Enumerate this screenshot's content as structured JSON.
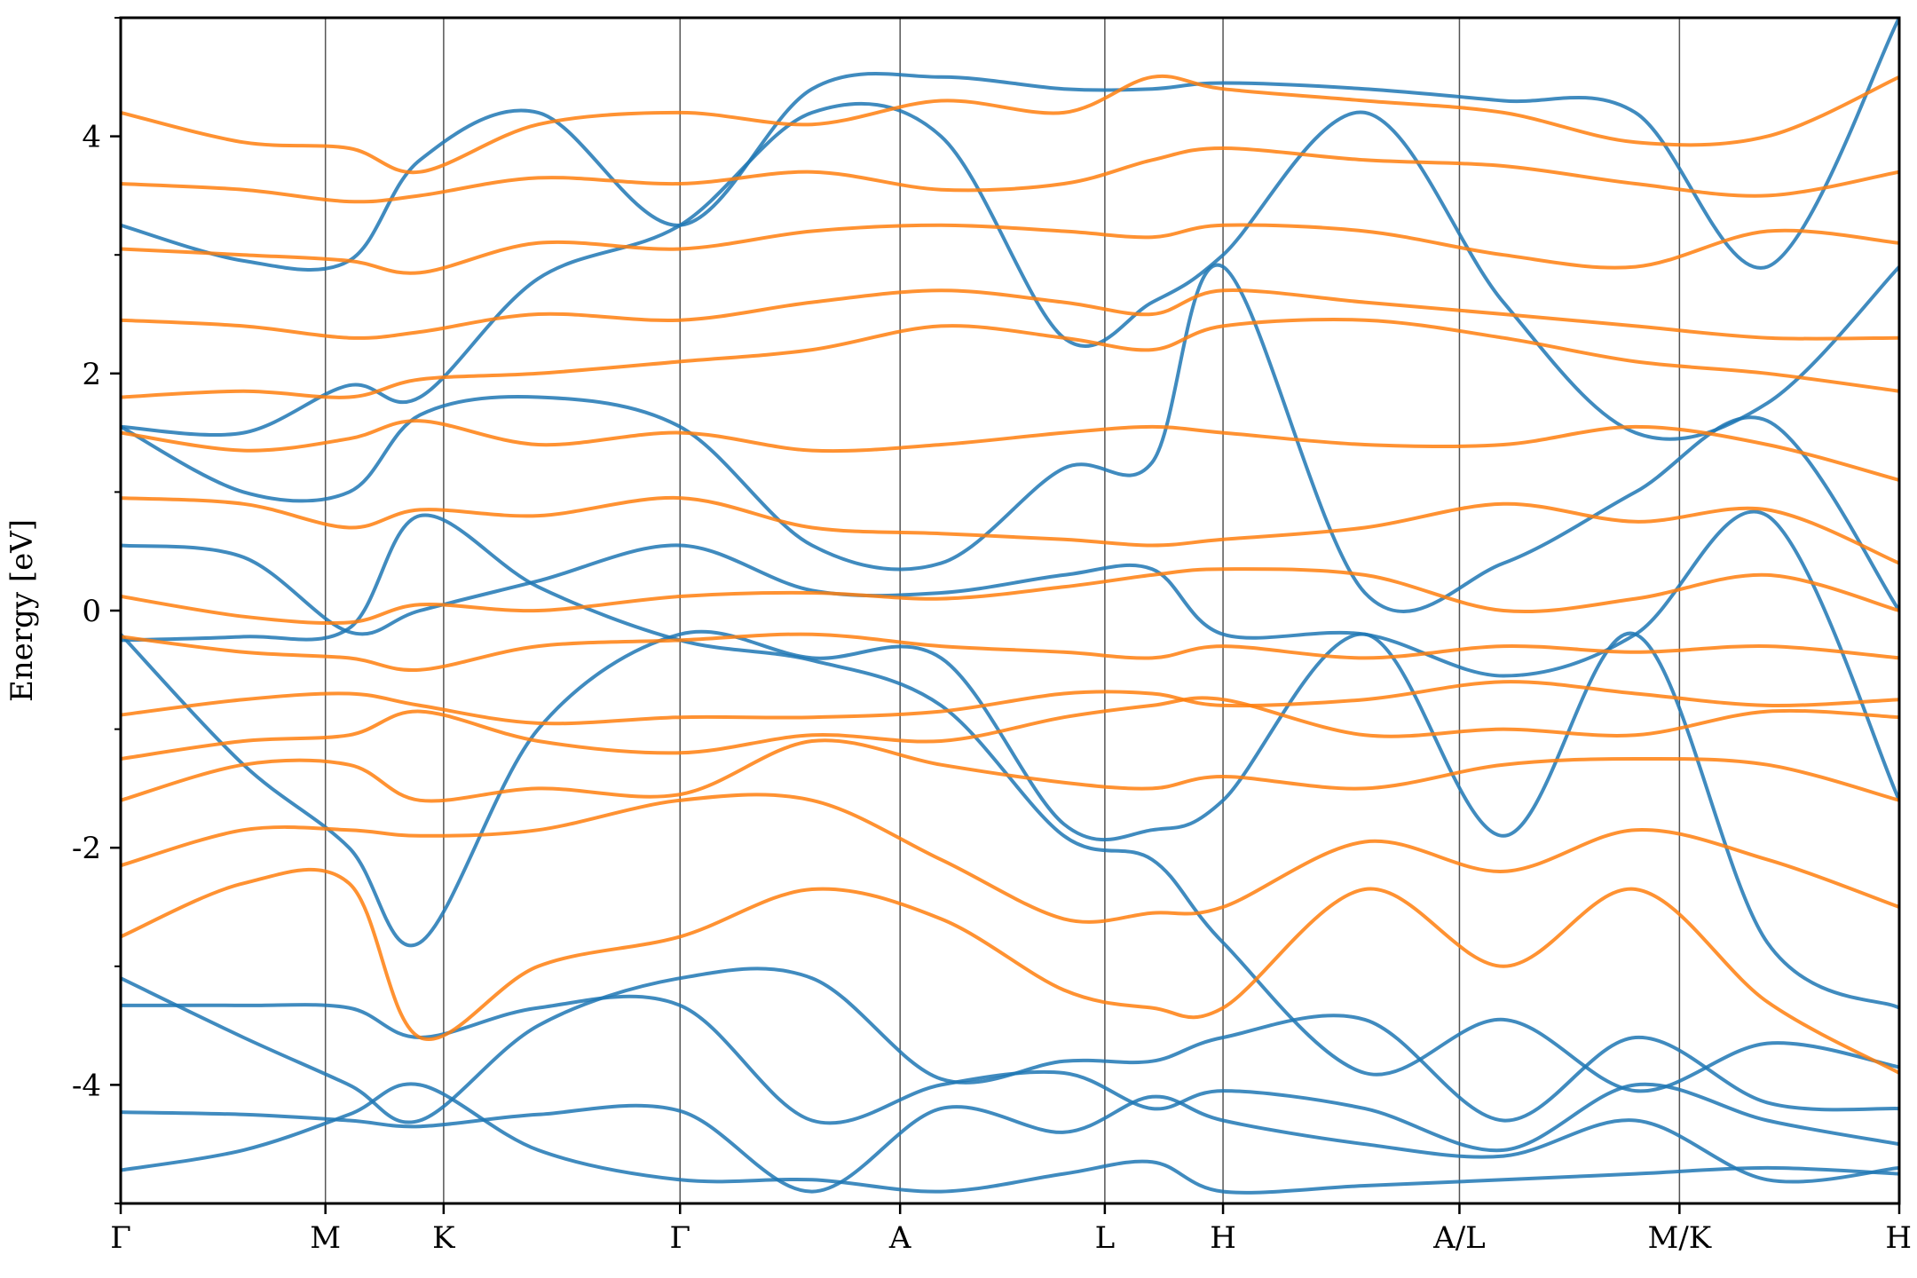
{
  "chart_data": {
    "type": "line",
    "ylabel": "Energy [eV]",
    "ylim": [
      -5,
      5
    ],
    "yticks": [
      -4,
      -2,
      0,
      2,
      4
    ],
    "ytick_labels": [
      "-4",
      "-2",
      "0",
      "2",
      "4"
    ],
    "yminor": [
      -5,
      -3,
      -1,
      1,
      3,
      5
    ],
    "kpath": [
      "Γ",
      "M",
      "K",
      "Γ",
      "A",
      "L",
      "H",
      "A/L",
      "M/K",
      "H"
    ],
    "kpositions": [
      0,
      0.8854,
      1.3966,
      2.419,
      3.3706,
      4.256,
      4.7672,
      5.7896,
      6.7411,
      7.6916
    ],
    "xlim": [
      0,
      7.6916
    ],
    "colors": {
      "spin_down": "#1f77b4",
      "spin_up": "#ff7f0e",
      "vline": "#555555"
    },
    "series": [
      {
        "color_key": "spin_down",
        "bands": [
          [
            -4.72,
            -4.55,
            -4.25,
            -4.0,
            -4.55,
            -4.8,
            -4.8,
            -4.9,
            -4.75,
            -4.65,
            -4.9,
            -4.85,
            -4.8,
            -4.75,
            -4.7,
            -4.75
          ],
          [
            -4.23,
            -4.25,
            -4.3,
            -4.35,
            -4.25,
            -4.22,
            -4.9,
            -4.2,
            -4.4,
            -4.1,
            -4.3,
            -4.5,
            -4.6,
            -4.3,
            -4.8,
            -4.7
          ],
          [
            -3.33,
            -3.33,
            -3.35,
            -3.6,
            -3.35,
            -3.33,
            -4.3,
            -4.0,
            -3.9,
            -4.2,
            -4.05,
            -4.2,
            -4.55,
            -4.0,
            -4.3,
            -4.5
          ],
          [
            -3.1,
            -3.6,
            -4.0,
            -4.3,
            -3.5,
            -3.1,
            -3.1,
            -3.95,
            -3.8,
            -3.8,
            -3.6,
            -3.45,
            -4.3,
            -3.6,
            -4.15,
            -4.2
          ],
          [
            -0.25,
            -0.22,
            -0.15,
            0.8,
            0.2,
            -0.25,
            -0.42,
            -0.8,
            -1.9,
            -2.1,
            -2.8,
            -3.9,
            -3.45,
            -4.05,
            -3.65,
            -3.85
          ],
          [
            -0.2,
            -1.3,
            -2.0,
            -2.8,
            -1.0,
            -0.2,
            -0.4,
            -0.4,
            -1.8,
            -1.85,
            -1.6,
            -0.2,
            -1.9,
            -0.2,
            -2.8,
            -3.35
          ],
          [
            0.55,
            0.45,
            -0.18,
            0.0,
            0.25,
            0.55,
            0.17,
            0.15,
            0.3,
            0.35,
            -0.2,
            -0.2,
            -0.55,
            -0.2,
            0.8,
            -1.6
          ],
          [
            1.55,
            1.0,
            1.0,
            1.65,
            1.8,
            1.55,
            0.55,
            0.4,
            1.2,
            1.25,
            2.9,
            0.15,
            0.4,
            1.0,
            1.6,
            0.0
          ],
          [
            1.55,
            1.5,
            1.9,
            1.8,
            2.8,
            3.25,
            4.2,
            4.0,
            2.3,
            2.6,
            3.0,
            4.2,
            2.6,
            1.5,
            1.75,
            2.9
          ],
          [
            3.25,
            2.95,
            2.95,
            3.8,
            4.2,
            3.25,
            4.4,
            4.5,
            4.4,
            4.4,
            4.45,
            4.4,
            4.3,
            4.2,
            2.9,
            5.0
          ]
        ]
      },
      {
        "color_key": "spin_up",
        "bands": [
          [
            -2.75,
            -2.3,
            -2.3,
            -3.6,
            -3.0,
            -2.75,
            -2.35,
            -2.6,
            -3.2,
            -3.35,
            -3.35,
            -2.35,
            -3.0,
            -2.35,
            -3.3,
            -3.9
          ],
          [
            -2.15,
            -1.85,
            -1.85,
            -1.9,
            -1.85,
            -1.6,
            -1.6,
            -2.1,
            -2.6,
            -2.55,
            -2.5,
            -1.95,
            -2.2,
            -1.85,
            -2.1,
            -2.5
          ],
          [
            -1.6,
            -1.3,
            -1.3,
            -1.6,
            -1.5,
            -1.55,
            -1.1,
            -1.3,
            -1.45,
            -1.5,
            -1.4,
            -1.5,
            -1.3,
            -1.25,
            -1.3,
            -1.6
          ],
          [
            -1.25,
            -1.1,
            -1.05,
            -0.85,
            -1.1,
            -1.2,
            -1.05,
            -1.1,
            -0.9,
            -0.8,
            -0.75,
            -1.05,
            -1.0,
            -1.05,
            -0.85,
            -0.9
          ],
          [
            -0.88,
            -0.75,
            -0.7,
            -0.8,
            -0.95,
            -0.9,
            -0.9,
            -0.85,
            -0.7,
            -0.7,
            -0.8,
            -0.75,
            -0.6,
            -0.7,
            -0.8,
            -0.75
          ],
          [
            -0.22,
            -0.35,
            -0.4,
            -0.5,
            -0.3,
            -0.25,
            -0.2,
            -0.3,
            -0.35,
            -0.4,
            -0.3,
            -0.4,
            -0.3,
            -0.35,
            -0.3,
            -0.4
          ],
          [
            0.12,
            -0.05,
            -0.1,
            0.05,
            0.0,
            0.12,
            0.15,
            0.1,
            0.2,
            0.3,
            0.35,
            0.3,
            0.0,
            0.1,
            0.3,
            0.0
          ],
          [
            0.95,
            0.9,
            0.7,
            0.85,
            0.8,
            0.95,
            0.7,
            0.65,
            0.6,
            0.55,
            0.6,
            0.7,
            0.9,
            0.75,
            0.85,
            0.4
          ],
          [
            1.5,
            1.35,
            1.45,
            1.6,
            1.4,
            1.5,
            1.35,
            1.4,
            1.5,
            1.55,
            1.5,
            1.4,
            1.4,
            1.55,
            1.4,
            1.1
          ],
          [
            1.8,
            1.85,
            1.8,
            1.95,
            2.0,
            2.1,
            2.2,
            2.4,
            2.3,
            2.2,
            2.4,
            2.45,
            2.3,
            2.1,
            2.0,
            1.85
          ],
          [
            2.45,
            2.4,
            2.3,
            2.35,
            2.5,
            2.45,
            2.6,
            2.7,
            2.6,
            2.5,
            2.7,
            2.6,
            2.5,
            2.4,
            2.3,
            2.3
          ],
          [
            3.05,
            3.0,
            2.95,
            2.85,
            3.1,
            3.05,
            3.2,
            3.25,
            3.2,
            3.15,
            3.25,
            3.2,
            3.0,
            2.9,
            3.2,
            3.1
          ],
          [
            3.6,
            3.55,
            3.45,
            3.5,
            3.65,
            3.6,
            3.7,
            3.55,
            3.6,
            3.8,
            3.9,
            3.8,
            3.75,
            3.6,
            3.5,
            3.7
          ],
          [
            4.2,
            3.95,
            3.9,
            3.7,
            4.1,
            4.2,
            4.1,
            4.3,
            4.2,
            4.5,
            4.4,
            4.3,
            4.2,
            3.95,
            4.0,
            4.5
          ]
        ]
      }
    ]
  }
}
